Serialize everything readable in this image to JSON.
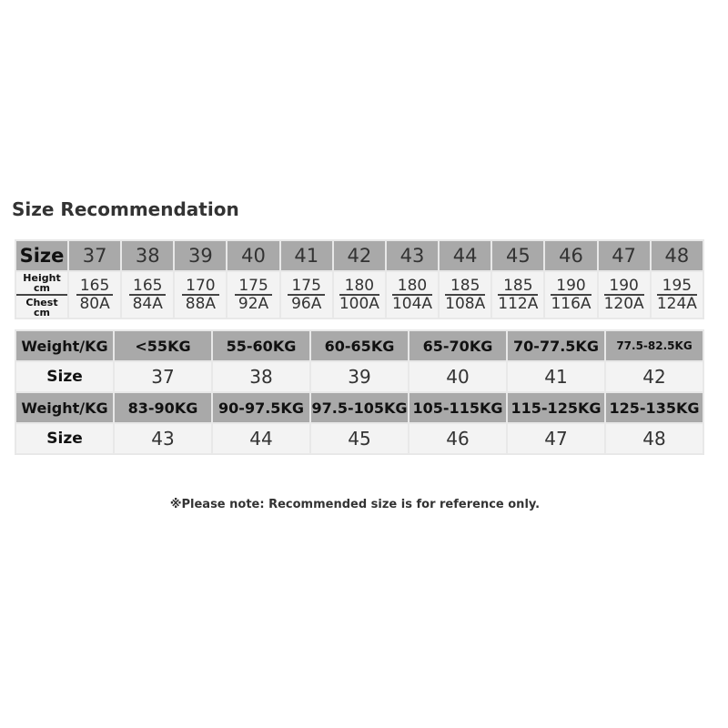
{
  "title": "Size Recommendation",
  "table1": {
    "size_label": "Size",
    "height_label": "Height",
    "height_unit": "cm",
    "chest_label": "Chest",
    "chest_unit": "cm",
    "sizes": [
      "37",
      "38",
      "39",
      "40",
      "41",
      "42",
      "43",
      "44",
      "45",
      "46",
      "47",
      "48"
    ],
    "heights": [
      "165",
      "165",
      "170",
      "175",
      "175",
      "180",
      "180",
      "185",
      "185",
      "190",
      "190",
      "195"
    ],
    "chests": [
      "80A",
      "84A",
      "88A",
      "92A",
      "96A",
      "100A",
      "104A",
      "108A",
      "112A",
      "116A",
      "120A",
      "124A"
    ]
  },
  "table2": {
    "weight_label": "Weight/KG",
    "size_label": "Size",
    "weights1": [
      "<55KG",
      "55-60KG",
      "60-65KG",
      "65-70KG",
      "70-77.5KG",
      "77.5-82.5KG"
    ],
    "sizes1": [
      "37",
      "38",
      "39",
      "40",
      "41",
      "42"
    ],
    "weights2": [
      "83-90KG",
      "90-97.5KG",
      "97.5-105KG",
      "105-115KG",
      "115-125KG",
      "125-135KG"
    ],
    "sizes2": [
      "43",
      "44",
      "45",
      "46",
      "47",
      "48"
    ]
  },
  "note": "※Please note: Recommended size is for reference only."
}
